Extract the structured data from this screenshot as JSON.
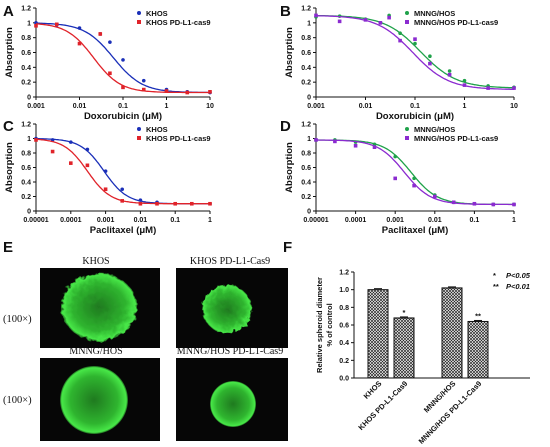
{
  "panel_labels": [
    "A",
    "B",
    "C",
    "D",
    "E",
    "F"
  ],
  "chart_data": [
    {
      "panel": "A",
      "type": "scatter",
      "xscale": "log",
      "xlabel": "Doxorubicin (μM)",
      "ylabel": "Absorption",
      "xlim": [
        0.001,
        10
      ],
      "ylim": [
        0,
        1.2
      ],
      "xticks": [
        "0.001",
        "0.01",
        "0.1",
        "1",
        "10"
      ],
      "yticks": [
        "0",
        "0.2",
        "0.4",
        "0.6",
        "0.8",
        "1",
        "1.2"
      ],
      "legend_position": "top-right",
      "grid": false,
      "series": [
        {
          "name": "KHOS",
          "color": "#1a2fb8",
          "marker": "circle",
          "x": [
            0.001,
            0.003,
            0.01,
            0.03,
            0.05,
            0.1,
            0.3,
            1,
            3,
            10
          ],
          "y": [
            1.0,
            0.97,
            0.93,
            0.85,
            0.74,
            0.5,
            0.22,
            0.1,
            0.07,
            0.06
          ],
          "fit": {
            "top": 1.0,
            "bottom": 0.06,
            "ic50": 0.06,
            "hill": 1.3
          }
        },
        {
          "name": "KHOS PD-L1-cas9",
          "color": "#e0232a",
          "marker": "square",
          "x": [
            0.001,
            0.003,
            0.01,
            0.03,
            0.05,
            0.1,
            0.3,
            1,
            3,
            10
          ],
          "y": [
            0.96,
            0.98,
            0.72,
            0.85,
            0.32,
            0.13,
            0.1,
            0.08,
            0.06,
            0.07
          ],
          "fit": {
            "top": 1.0,
            "bottom": 0.06,
            "ic50": 0.021,
            "hill": 1.4
          }
        }
      ]
    },
    {
      "panel": "B",
      "type": "scatter",
      "xscale": "log",
      "xlabel": "Doxorubicin (μM)",
      "ylabel": "Absorption",
      "xlim": [
        0.001,
        10
      ],
      "ylim": [
        0,
        1.2
      ],
      "xticks": [
        "0.001",
        "0.01",
        "0.1",
        "1",
        "10"
      ],
      "yticks": [
        "0",
        "0.2",
        "0.4",
        "0.6",
        "0.8",
        "1",
        "1.2"
      ],
      "legend_position": "top-right",
      "grid": false,
      "series": [
        {
          "name": "MNNG/HOS",
          "color": "#1fa24a",
          "marker": "circle",
          "x": [
            0.001,
            0.003,
            0.01,
            0.02,
            0.03,
            0.05,
            0.1,
            0.2,
            0.5,
            1,
            3,
            10
          ],
          "y": [
            1.08,
            1.09,
            1.05,
            1.0,
            1.1,
            0.86,
            0.72,
            0.55,
            0.35,
            0.22,
            0.15,
            0.13
          ],
          "fit": {
            "top": 1.1,
            "bottom": 0.12,
            "ic50": 0.13,
            "hill": 1.2
          }
        },
        {
          "name": "MNNG/HOS PD-L1-cas9",
          "color": "#8b2bd0",
          "marker": "square",
          "x": [
            0.001,
            0.003,
            0.01,
            0.02,
            0.03,
            0.05,
            0.1,
            0.2,
            0.5,
            1,
            3,
            10
          ],
          "y": [
            1.1,
            1.02,
            1.04,
            1.0,
            1.07,
            0.76,
            0.78,
            0.45,
            0.3,
            0.16,
            0.12,
            0.12
          ],
          "fit": {
            "top": 1.1,
            "bottom": 0.1,
            "ic50": 0.09,
            "hill": 1.2
          }
        }
      ]
    },
    {
      "panel": "C",
      "type": "scatter",
      "xscale": "log",
      "xlabel": "Paclitaxel (μM)",
      "ylabel": "Absorption",
      "xlim": [
        1e-05,
        1
      ],
      "ylim": [
        0,
        1.2
      ],
      "xticks": [
        "0.00001",
        "0.0001",
        "0.001",
        "0.01",
        "0.1",
        "1"
      ],
      "yticks": [
        "0",
        "0.2",
        "0.4",
        "0.6",
        "0.8",
        "1",
        "1.2"
      ],
      "legend_position": "top-right",
      "grid": false,
      "series": [
        {
          "name": "KHOS",
          "color": "#1a2fb8",
          "marker": "circle",
          "x": [
            1e-05,
            3e-05,
            0.0001,
            0.0003,
            0.001,
            0.003,
            0.01,
            0.03,
            0.1,
            0.3,
            1
          ],
          "y": [
            1.0,
            0.98,
            0.95,
            0.85,
            0.55,
            0.3,
            0.15,
            0.12,
            0.1,
            0.1,
            0.1
          ],
          "fit": {
            "top": 1.0,
            "bottom": 0.1,
            "ic50": 0.0009,
            "hill": 1.3
          }
        },
        {
          "name": "KHOS PD-L1-cas9",
          "color": "#e0232a",
          "marker": "square",
          "x": [
            1e-05,
            3e-05,
            0.0001,
            0.0003,
            0.001,
            0.003,
            0.01,
            0.03,
            0.1,
            0.3,
            1
          ],
          "y": [
            0.98,
            0.82,
            0.66,
            0.63,
            0.3,
            0.14,
            0.1,
            0.1,
            0.1,
            0.1,
            0.1
          ],
          "fit": {
            "top": 1.0,
            "bottom": 0.1,
            "ic50": 0.0003,
            "hill": 1.3
          }
        }
      ]
    },
    {
      "panel": "D",
      "type": "scatter",
      "xscale": "log",
      "xlabel": "Paclitaxel (μM)",
      "ylabel": "Absorption",
      "xlim": [
        1e-05,
        1
      ],
      "ylim": [
        0,
        1.2
      ],
      "xticks": [
        "0.00001",
        "0.0001",
        "0.001",
        "0.01",
        "0.1",
        "1"
      ],
      "yticks": [
        "0",
        "0.2",
        "0.4",
        "0.6",
        "0.8",
        "1",
        "1.2"
      ],
      "legend_position": "top-right",
      "grid": false,
      "series": [
        {
          "name": "MNNG/HOS",
          "color": "#1fa24a",
          "marker": "circle",
          "x": [
            1e-05,
            3e-05,
            0.0001,
            0.0003,
            0.001,
            0.003,
            0.01,
            0.03,
            0.1,
            0.3,
            1
          ],
          "y": [
            0.98,
            0.98,
            0.95,
            0.92,
            0.75,
            0.45,
            0.22,
            0.12,
            0.1,
            0.09,
            0.09
          ],
          "fit": {
            "top": 0.98,
            "bottom": 0.09,
            "ic50": 0.0025,
            "hill": 1.3
          }
        },
        {
          "name": "MNNG/HOS PD-L1-cas9",
          "color": "#8b2bd0",
          "marker": "square",
          "x": [
            1e-05,
            3e-05,
            0.0001,
            0.0003,
            0.001,
            0.003,
            0.01,
            0.03,
            0.1,
            0.3,
            1
          ],
          "y": [
            0.98,
            0.96,
            0.9,
            0.88,
            0.45,
            0.35,
            0.2,
            0.12,
            0.1,
            0.09,
            0.09
          ],
          "fit": {
            "top": 0.98,
            "bottom": 0.09,
            "ic50": 0.0017,
            "hill": 1.3
          }
        }
      ]
    },
    {
      "panel": "F",
      "type": "bar",
      "categories": [
        "KHOS",
        "KHOS PD-L1-Cas9",
        "MNNG/HOS",
        "MNNG/HOS PD-L1-Cas9"
      ],
      "values": [
        1.0,
        0.68,
        1.02,
        0.64
      ],
      "significance": [
        "",
        "*",
        "",
        "**"
      ],
      "ylabel": "Relative spheroid diameter\n% of control",
      "ylim": [
        0,
        1.2
      ],
      "yticks": [
        "0.0",
        "0.2",
        "0.4",
        "0.6",
        "0.8",
        "1.0",
        "1.2"
      ],
      "legend": [
        {
          "mark": "*",
          "text": "P<0.05"
        },
        {
          "mark": "**",
          "text": "P<0.01"
        }
      ],
      "grid": false
    }
  ],
  "spheroid_images": {
    "panel": "E",
    "magnification": "(100×)",
    "titles": [
      "KHOS",
      "KHOS PD-L1-Cas9",
      "MNNG/HOS",
      "MNNG/HOS PD-L1-Cas9"
    ],
    "colors": {
      "background": "#050505",
      "cell_bright": "#3be03b",
      "cell_dark": "#145214"
    }
  }
}
